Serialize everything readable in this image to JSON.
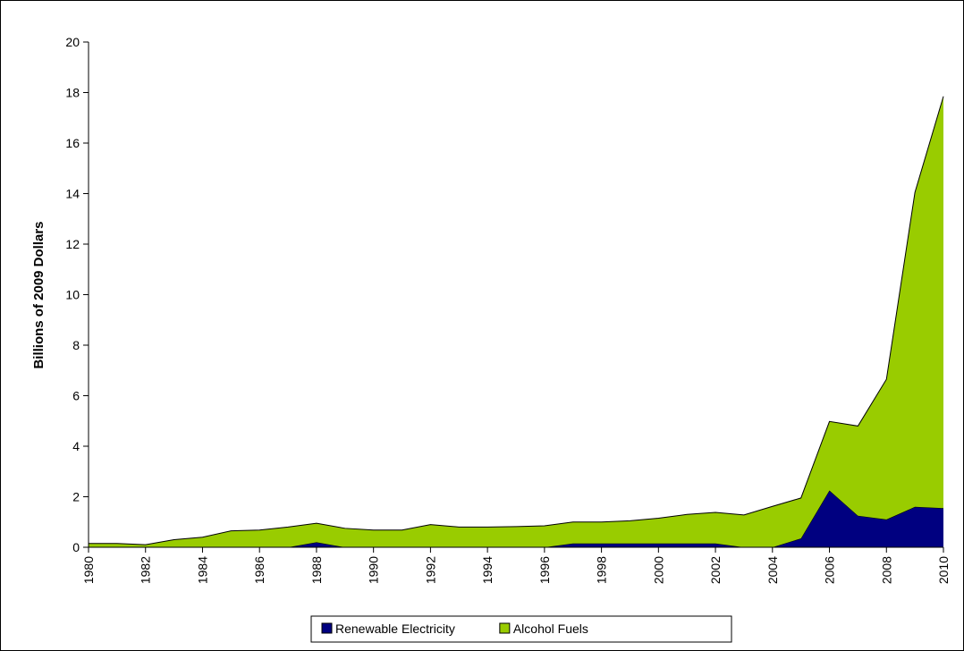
{
  "chart_data": {
    "type": "stacked-area",
    "y_label": "Billions of 2009 Dollars",
    "x": [
      1980,
      1981,
      1982,
      1983,
      1984,
      1985,
      1986,
      1987,
      1988,
      1989,
      1990,
      1991,
      1992,
      1993,
      1994,
      1995,
      1996,
      1997,
      1998,
      1999,
      2000,
      2001,
      2002,
      2003,
      2004,
      2005,
      2006,
      2007,
      2008,
      2009,
      2010
    ],
    "series": [
      {
        "name": "Renewable Electricity",
        "color": "#000080",
        "values": [
          0,
          0,
          0,
          0,
          0,
          0,
          0,
          0,
          0.2,
          0,
          0,
          0,
          0,
          0,
          0,
          0,
          0,
          0.15,
          0.15,
          0.15,
          0.15,
          0.15,
          0.15,
          0,
          0,
          0.35,
          2.25,
          1.25,
          1.1,
          1.6,
          1.55
        ]
      },
      {
        "name": "Alcohol Fuels",
        "color": "#99cc00",
        "values": [
          0.15,
          0.15,
          0.1,
          0.3,
          0.4,
          0.65,
          0.68,
          0.8,
          0.75,
          0.75,
          0.68,
          0.68,
          0.9,
          0.8,
          0.8,
          0.82,
          0.85,
          0.85,
          0.85,
          0.9,
          1.0,
          1.15,
          1.23,
          1.28,
          1.62,
          1.6,
          2.73,
          3.55,
          5.55,
          12.45,
          16.3
        ]
      }
    ],
    "xlim": [
      1980,
      2010
    ],
    "xticks": [
      1980,
      1982,
      1984,
      1986,
      1988,
      1990,
      1992,
      1994,
      1996,
      1998,
      2000,
      2002,
      2004,
      2006,
      2008,
      2010
    ],
    "ylim": [
      0,
      20
    ],
    "yticks": [
      0,
      2,
      4,
      6,
      8,
      10,
      12,
      14,
      16,
      18,
      20
    ],
    "legend": "bottom"
  }
}
